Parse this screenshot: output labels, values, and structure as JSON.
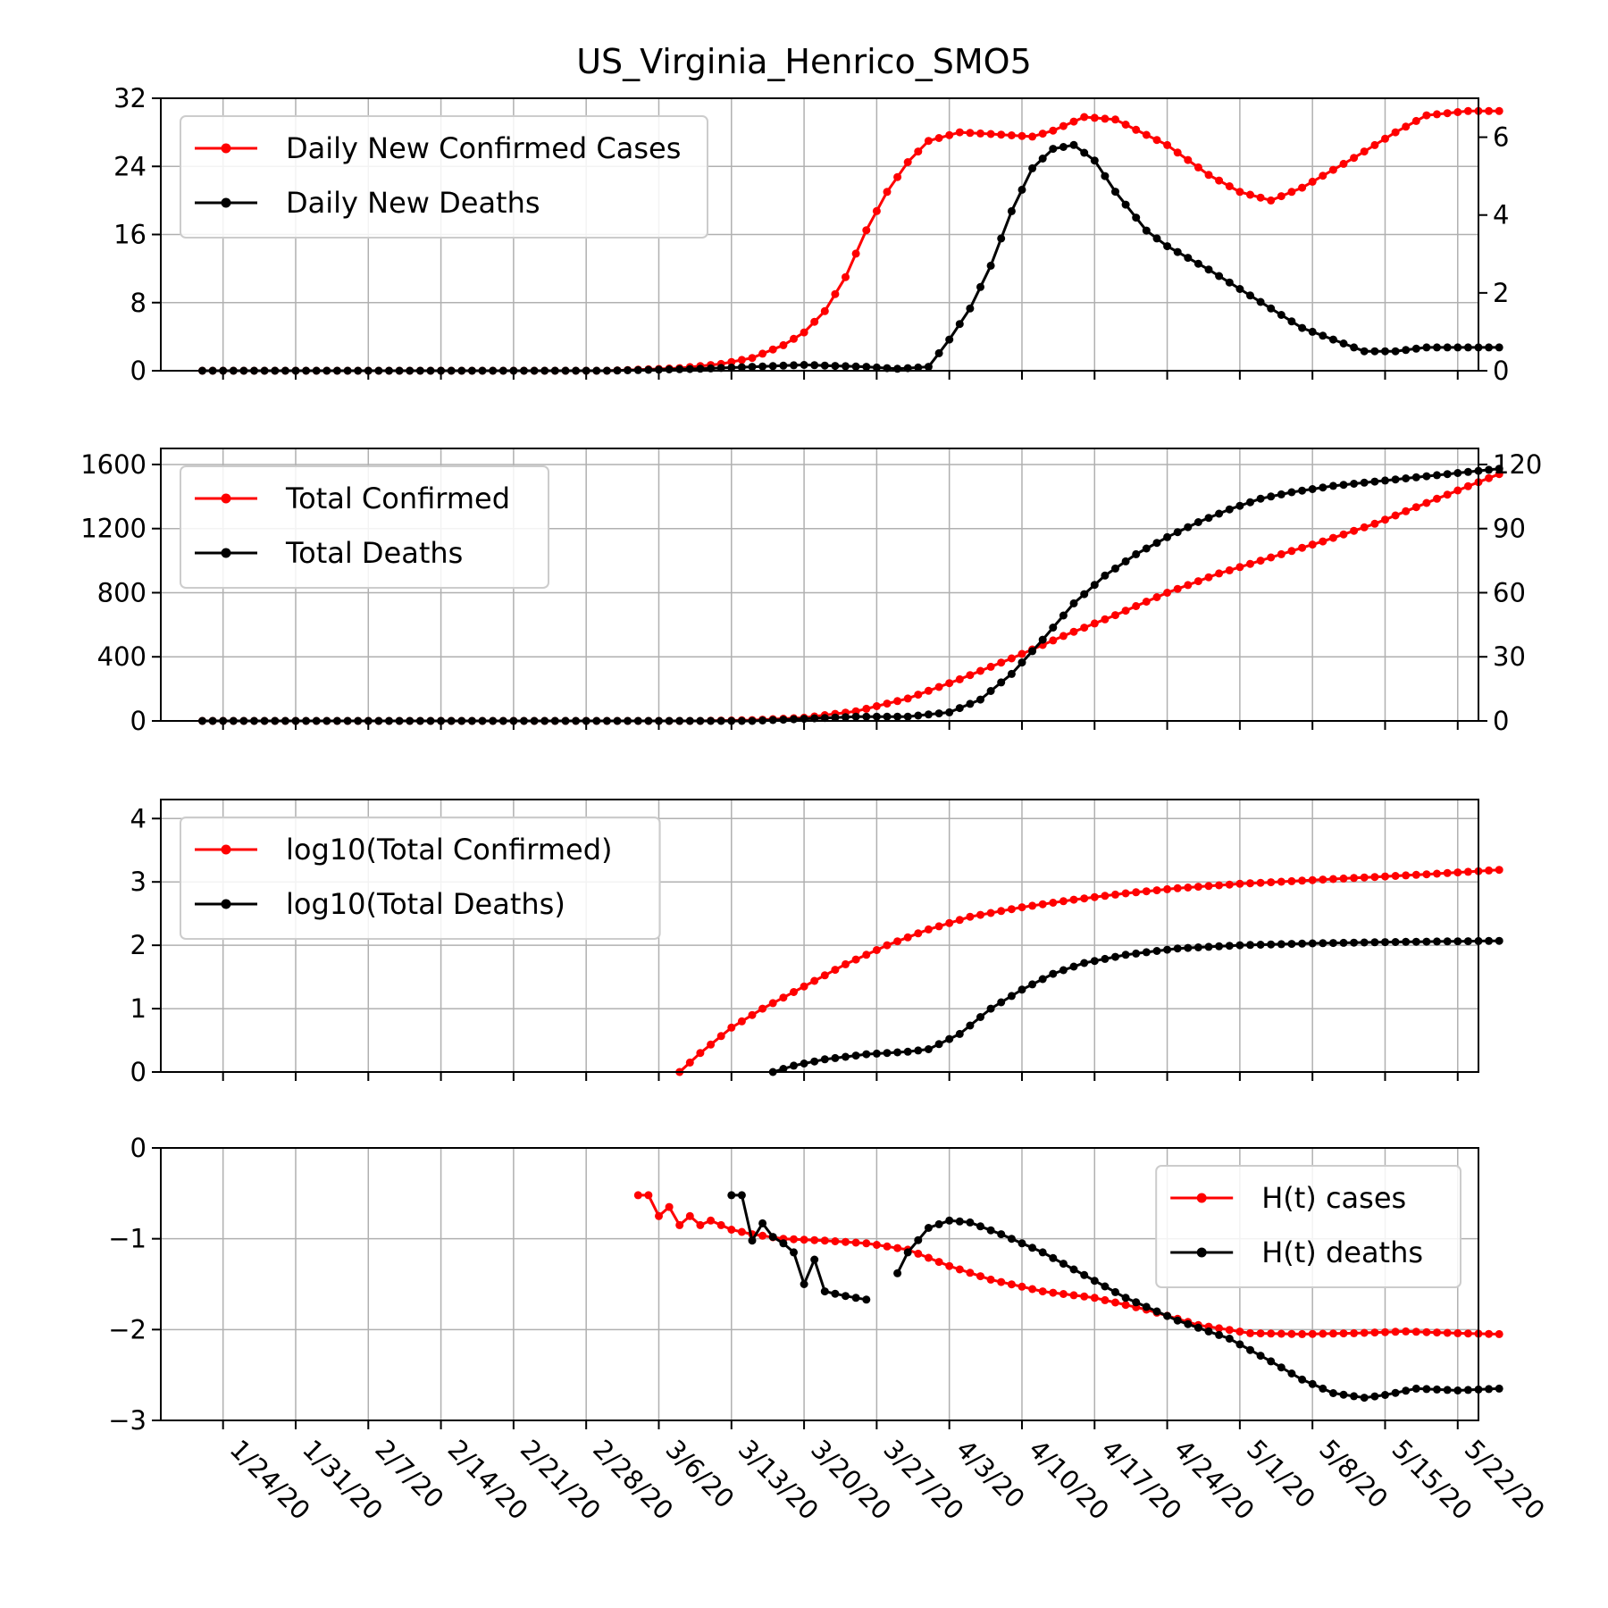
{
  "chart_data": {
    "type": "line",
    "title": "US_Virginia_Henrico_SMO5",
    "x_start": "1/22/20",
    "x_tick_labels": [
      "1/24/20",
      "1/31/20",
      "2/7/20",
      "2/14/20",
      "2/21/20",
      "2/28/20",
      "3/6/20",
      "3/13/20",
      "3/20/20",
      "3/27/20",
      "4/3/20",
      "4/10/20",
      "4/17/20",
      "4/24/20",
      "5/1/20",
      "5/8/20",
      "5/15/20",
      "5/22/20"
    ],
    "colors": {
      "cases": "#ff0000",
      "deaths": "#000000"
    },
    "panels": [
      {
        "id": "daily",
        "legend": {
          "placement": "upper-left",
          "entries": [
            "Daily New Confirmed Cases",
            "Daily New Deaths"
          ]
        },
        "left_axis": {
          "ylim": [
            0,
            32
          ],
          "ticks": [
            0,
            8,
            16,
            24,
            32
          ]
        },
        "right_axis": {
          "ylim": [
            0,
            7
          ],
          "ticks": [
            0,
            2,
            4,
            6
          ]
        },
        "series": [
          {
            "name": "Daily New Confirmed Cases",
            "axis": "left",
            "points": [
              [
                "1/22/20",
                0
              ],
              [
                "3/1/20",
                0
              ],
              [
                "3/8/20",
                0.3
              ],
              [
                "3/12/20",
                0.8
              ],
              [
                "3/15/20",
                1.5
              ],
              [
                "3/18/20",
                3
              ],
              [
                "3/20/20",
                4.5
              ],
              [
                "3/22/20",
                7
              ],
              [
                "3/24/20",
                11
              ],
              [
                "3/26/20",
                16.5
              ],
              [
                "3/28/20",
                21
              ],
              [
                "3/30/20",
                24.5
              ],
              [
                "4/1/20",
                27
              ],
              [
                "4/4/20",
                28
              ],
              [
                "4/7/20",
                27.8
              ],
              [
                "4/11/20",
                27.5
              ],
              [
                "4/13/20",
                28.2
              ],
              [
                "4/16/20",
                29.8
              ],
              [
                "4/19/20",
                29.5
              ],
              [
                "4/24/20",
                26.5
              ],
              [
                "4/28/20",
                23
              ],
              [
                "5/1/20",
                21
              ],
              [
                "5/4/20",
                20
              ],
              [
                "5/7/20",
                21.5
              ],
              [
                "5/12/20",
                25
              ],
              [
                "5/16/20",
                28
              ],
              [
                "5/19/20",
                30
              ],
              [
                "5/23/20",
                30.5
              ],
              [
                "5/26/20",
                30.5
              ]
            ]
          },
          {
            "name": "Daily New Deaths",
            "axis": "right",
            "points": [
              [
                "1/22/20",
                0
              ],
              [
                "3/1/20",
                0
              ],
              [
                "3/10/20",
                0.05
              ],
              [
                "3/15/20",
                0.1
              ],
              [
                "3/20/20",
                0.15
              ],
              [
                "3/26/20",
                0.1
              ],
              [
                "3/29/20",
                0.05
              ],
              [
                "4/1/20",
                0.1
              ],
              [
                "4/3/20",
                0.8
              ],
              [
                "4/5/20",
                1.6
              ],
              [
                "4/7/20",
                2.7
              ],
              [
                "4/9/20",
                4.1
              ],
              [
                "4/11/20",
                5.2
              ],
              [
                "4/13/20",
                5.7
              ],
              [
                "4/15/20",
                5.8
              ],
              [
                "4/17/20",
                5.4
              ],
              [
                "4/19/20",
                4.6
              ],
              [
                "4/22/20",
                3.6
              ],
              [
                "4/24/20",
                3.2
              ],
              [
                "4/28/20",
                2.6
              ],
              [
                "5/1/20",
                2.1
              ],
              [
                "5/4/20",
                1.6
              ],
              [
                "5/7/20",
                1.1
              ],
              [
                "5/10/20",
                0.8
              ],
              [
                "5/13/20",
                0.5
              ],
              [
                "5/16/20",
                0.5
              ],
              [
                "5/19/20",
                0.6
              ],
              [
                "5/22/20",
                0.6
              ],
              [
                "5/26/20",
                0.6
              ]
            ]
          }
        ]
      },
      {
        "id": "total",
        "legend": {
          "placement": "upper-left",
          "entries": [
            "Total Confirmed",
            "Total Deaths"
          ]
        },
        "left_axis": {
          "ylim": [
            0,
            1700
          ],
          "ticks": [
            0,
            400,
            800,
            1200,
            1600
          ]
        },
        "right_axis": {
          "ylim": [
            0,
            127.5
          ],
          "ticks": [
            0,
            30,
            60,
            90,
            120
          ]
        },
        "series": [
          {
            "name": "Total Confirmed",
            "axis": "left",
            "points": [
              [
                "1/22/20",
                0
              ],
              [
                "3/10/20",
                0
              ],
              [
                "3/15/20",
                5
              ],
              [
                "3/20/20",
                20
              ],
              [
                "3/25/20",
                60
              ],
              [
                "3/30/20",
                140
              ],
              [
                "4/4/20",
                260
              ],
              [
                "4/9/20",
                390
              ],
              [
                "4/14/20",
                530
              ],
              [
                "4/19/20",
                660
              ],
              [
                "4/24/20",
                800
              ],
              [
                "4/29/20",
                920
              ],
              [
                "5/4/20",
                1020
              ],
              [
                "5/9/20",
                1120
              ],
              [
                "5/14/20",
                1230
              ],
              [
                "5/19/20",
                1360
              ],
              [
                "5/24/20",
                1490
              ],
              [
                "5/26/20",
                1540
              ]
            ]
          },
          {
            "name": "Total Deaths",
            "axis": "right",
            "points": [
              [
                "1/22/20",
                0
              ],
              [
                "3/15/20",
                0
              ],
              [
                "3/20/20",
                1
              ],
              [
                "3/25/20",
                2
              ],
              [
                "3/30/20",
                2
              ],
              [
                "4/3/20",
                4
              ],
              [
                "4/6/20",
                10
              ],
              [
                "4/9/20",
                22
              ],
              [
                "4/12/20",
                38
              ],
              [
                "4/15/20",
                55
              ],
              [
                "4/18/20",
                68
              ],
              [
                "4/21/20",
                78
              ],
              [
                "4/24/20",
                86
              ],
              [
                "4/27/20",
                93
              ],
              [
                "4/30/20",
                99
              ],
              [
                "5/3/20",
                104
              ],
              [
                "5/6/20",
                107
              ],
              [
                "5/10/20",
                110
              ],
              [
                "5/14/20",
                112
              ],
              [
                "5/18/20",
                114
              ],
              [
                "5/22/20",
                116
              ],
              [
                "5/26/20",
                118
              ]
            ]
          }
        ]
      },
      {
        "id": "log",
        "legend": {
          "placement": "upper-left",
          "entries": [
            "log10(Total Confirmed)",
            "log10(Total Deaths)"
          ]
        },
        "left_axis": {
          "ylim": [
            0,
            4.3
          ],
          "ticks": [
            0,
            1,
            2,
            3,
            4
          ]
        },
        "series": [
          {
            "name": "log10(Total Confirmed)",
            "axis": "left",
            "points": [
              [
                "3/8/20",
                0
              ],
              [
                "3/10/20",
                0.3
              ],
              [
                "3/13/20",
                0.7
              ],
              [
                "3/16/20",
                1.0
              ],
              [
                "3/20/20",
                1.35
              ],
              [
                "3/24/20",
                1.7
              ],
              [
                "3/28/20",
                2.0
              ],
              [
                "4/1/20",
                2.25
              ],
              [
                "4/5/20",
                2.45
              ],
              [
                "4/10/20",
                2.6
              ],
              [
                "4/15/20",
                2.72
              ],
              [
                "4/20/20",
                2.82
              ],
              [
                "4/25/20",
                2.9
              ],
              [
                "5/1/20",
                2.97
              ],
              [
                "5/7/20",
                3.02
              ],
              [
                "5/13/20",
                3.07
              ],
              [
                "5/19/20",
                3.12
              ],
              [
                "5/26/20",
                3.19
              ]
            ]
          },
          {
            "name": "log10(Total Deaths)",
            "axis": "left",
            "points": [
              [
                "3/17/20",
                0
              ],
              [
                "3/19/20",
                0.1
              ],
              [
                "3/22/20",
                0.2
              ],
              [
                "3/26/20",
                0.28
              ],
              [
                "3/30/20",
                0.32
              ],
              [
                "4/1/20",
                0.36
              ],
              [
                "4/4/20",
                0.6
              ],
              [
                "4/7/20",
                1.0
              ],
              [
                "4/10/20",
                1.3
              ],
              [
                "4/13/20",
                1.55
              ],
              [
                "4/16/20",
                1.72
              ],
              [
                "4/20/20",
                1.85
              ],
              [
                "4/25/20",
                1.95
              ],
              [
                "5/1/20",
                2.0
              ],
              [
                "5/8/20",
                2.03
              ],
              [
                "5/15/20",
                2.05
              ],
              [
                "5/26/20",
                2.07
              ]
            ]
          }
        ]
      },
      {
        "id": "hazard",
        "legend": {
          "placement": "upper-right",
          "entries": [
            "H(t) cases",
            "H(t) deaths"
          ]
        },
        "left_axis": {
          "ylim": [
            -3,
            0
          ],
          "ticks": [
            -3,
            -2,
            -1,
            0
          ],
          "tick_text": [
            "−3",
            "−2",
            "−1",
            "0"
          ]
        },
        "series": [
          {
            "name": "H(t) cases",
            "axis": "left",
            "points": [
              [
                "3/4/20",
                -0.52
              ],
              [
                "3/5/20",
                -0.52
              ],
              [
                "3/6/20",
                -0.75
              ],
              [
                "3/7/20",
                -0.65
              ],
              [
                "3/8/20",
                -0.85
              ],
              [
                "3/9/20",
                -0.75
              ],
              [
                "3/10/20",
                -0.85
              ],
              [
                "3/11/20",
                -0.8
              ],
              [
                "3/13/20",
                -0.9
              ],
              [
                "3/15/20",
                -0.95
              ],
              [
                "3/18/20",
                -1.0
              ],
              [
                "3/22/20",
                -1.02
              ],
              [
                "3/26/20",
                -1.05
              ],
              [
                "3/30/20",
                -1.12
              ],
              [
                "4/3/20",
                -1.3
              ],
              [
                "4/7/20",
                -1.45
              ],
              [
                "4/12/20",
                -1.58
              ],
              [
                "4/17/20",
                -1.65
              ],
              [
                "4/22/20",
                -1.78
              ],
              [
                "4/27/20",
                -1.95
              ],
              [
                "5/2/20",
                -2.04
              ],
              [
                "5/7/20",
                -2.05
              ],
              [
                "5/12/20",
                -2.04
              ],
              [
                "5/17/20",
                -2.02
              ],
              [
                "5/22/20",
                -2.04
              ],
              [
                "5/26/20",
                -2.05
              ]
            ]
          },
          {
            "name": "H(t) deaths",
            "axis": "left",
            "segments": [
              [
                [
                  "3/13/20",
                  -0.52
                ],
                [
                  "3/14/20",
                  -0.52
                ],
                [
                  "3/15/20",
                  -1.02
                ],
                [
                  "3/16/20",
                  -0.83
                ],
                [
                  "3/17/20",
                  -0.98
                ],
                [
                  "3/18/20",
                  -1.05
                ],
                [
                  "3/19/20",
                  -1.15
                ],
                [
                  "3/20/20",
                  -1.5
                ],
                [
                  "3/21/20",
                  -1.23
                ],
                [
                  "3/22/20",
                  -1.58
                ],
                [
                  "3/24/20",
                  -1.63
                ],
                [
                  "3/26/20",
                  -1.67
                ]
              ],
              [
                [
                  "3/29/20",
                  -1.38
                ],
                [
                  "3/30/20",
                  -1.15
                ],
                [
                  "4/1/20",
                  -0.88
                ],
                [
                  "4/3/20",
                  -0.8
                ],
                [
                  "4/5/20",
                  -0.82
                ],
                [
                  "4/8/20",
                  -0.95
                ],
                [
                  "4/12/20",
                  -1.15
                ],
                [
                  "4/16/20",
                  -1.4
                ],
                [
                  "4/20/20",
                  -1.65
                ],
                [
                  "4/25/20",
                  -1.9
                ],
                [
                  "4/30/20",
                  -2.1
                ],
                [
                  "5/4/20",
                  -2.35
                ],
                [
                  "5/7/20",
                  -2.55
                ],
                [
                  "5/10/20",
                  -2.7
                ],
                [
                  "5/13/20",
                  -2.75
                ],
                [
                  "5/15/20",
                  -2.72
                ],
                [
                  "5/18/20",
                  -2.65
                ],
                [
                  "5/22/20",
                  -2.67
                ],
                [
                  "5/26/20",
                  -2.65
                ]
              ]
            ]
          }
        ]
      }
    ]
  }
}
